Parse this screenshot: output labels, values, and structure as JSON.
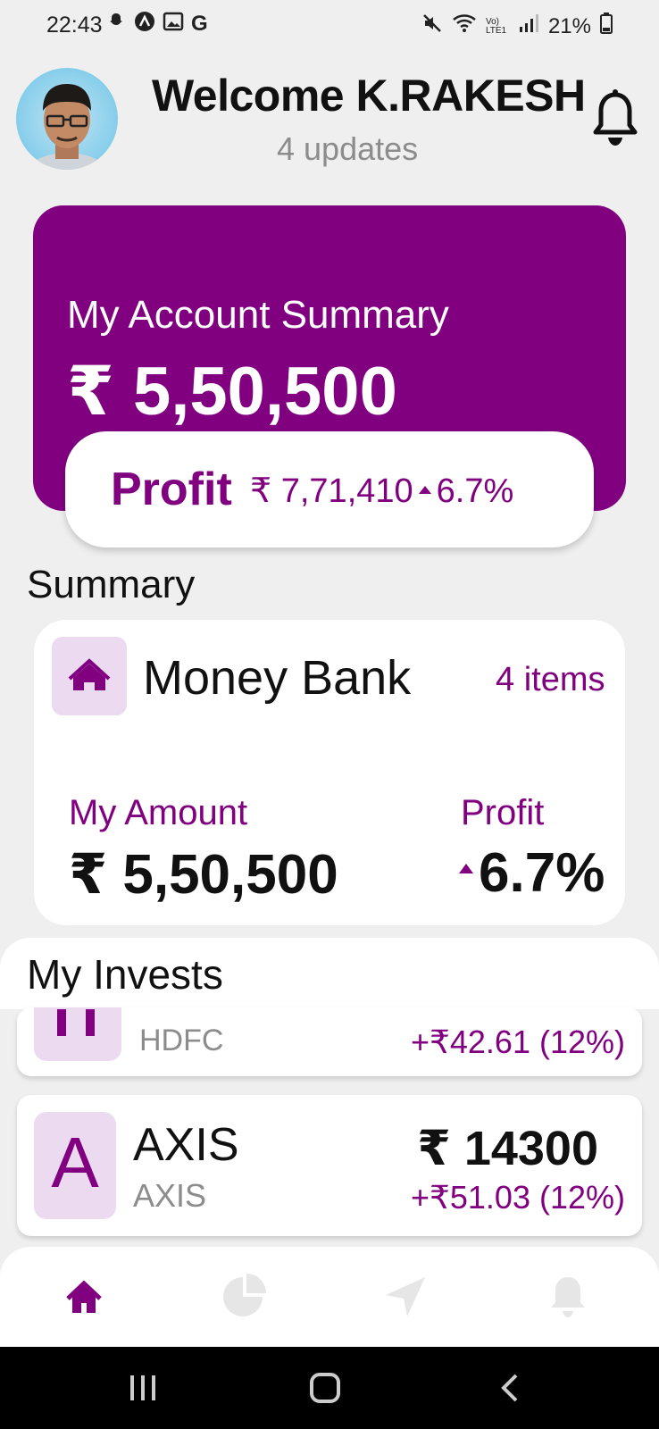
{
  "status_bar": {
    "time": "22:43",
    "battery": "21%",
    "network_label": "Vo) LTE1"
  },
  "header": {
    "welcome": "Welcome K.RAKESH",
    "updates": "4 updates"
  },
  "account_summary": {
    "title": "My Account Summary",
    "amount": "₹ 5,50,500",
    "profit_label": "Profit",
    "profit_amount": "₹ 7,71,410",
    "profit_change": "6.7%"
  },
  "summary": {
    "heading": "Summary",
    "bank_name": "Money Bank",
    "items": "4 items",
    "my_amount_label": "My Amount",
    "my_amount_value": "₹ 5,50,500",
    "profit_label": "Profit",
    "profit_value": "6.7%"
  },
  "invests": {
    "title": "My Invests",
    "rows": [
      {
        "name": "HDFC",
        "change": "+₹42.61 (12%)"
      },
      {
        "letter": "A",
        "name": "AXIS",
        "sub": "AXIS",
        "price": "₹ 14300",
        "change": "+₹51.03 (12%)"
      }
    ]
  },
  "colors": {
    "brand": "#800080",
    "icon_bg": "#ebdaf0",
    "inactive_nav": "#e6e6e6"
  },
  "icons": [
    "home-icon",
    "pie-chart-icon",
    "navigation-icon",
    "bell-icon"
  ]
}
